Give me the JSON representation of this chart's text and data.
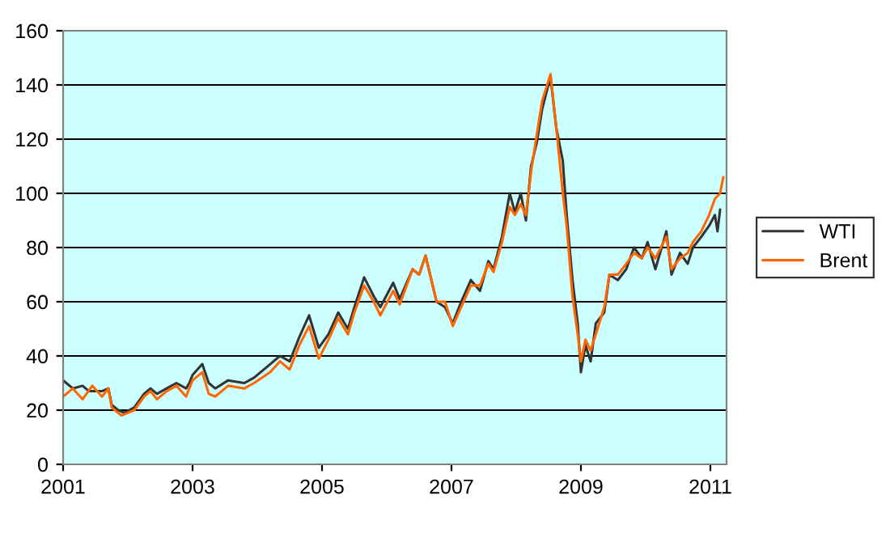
{
  "chart_data": {
    "type": "line",
    "xlim": [
      2001,
      2011.25
    ],
    "xticks": [
      2001,
      2003,
      2005,
      2007,
      2009,
      2011
    ],
    "ylim": [
      0,
      160
    ],
    "yticks": [
      0,
      20,
      40,
      60,
      80,
      100,
      120,
      140,
      160
    ],
    "grid": "y",
    "legend": "right",
    "series": [
      {
        "name": "WTI",
        "color": "#333333",
        "x": [
          2001.0,
          2001.15,
          2001.3,
          2001.4,
          2001.6,
          2001.7,
          2001.75,
          2001.85,
          2001.95,
          2002.1,
          2002.25,
          2002.35,
          2002.45,
          2002.6,
          2002.75,
          2002.9,
          2002.95,
          2003.0,
          2003.15,
          2003.25,
          2003.35,
          2003.55,
          2003.8,
          2003.95,
          2004.2,
          2004.35,
          2004.5,
          2004.65,
          2004.8,
          2004.95,
          2005.1,
          2005.25,
          2005.4,
          2005.5,
          2005.65,
          2005.8,
          2005.9,
          2006.1,
          2006.2,
          2006.4,
          2006.5,
          2006.6,
          2006.77,
          2006.9,
          2007.02,
          2007.15,
          2007.3,
          2007.44,
          2007.57,
          2007.65,
          2007.78,
          2007.9,
          2007.98,
          2008.07,
          2008.15,
          2008.23,
          2008.32,
          2008.4,
          2008.53,
          2008.62,
          2008.72,
          2008.78,
          2008.87,
          2008.95,
          2009.0,
          2009.07,
          2009.15,
          2009.23,
          2009.36,
          2009.44,
          2009.57,
          2009.7,
          2009.82,
          2009.94,
          2010.03,
          2010.15,
          2010.32,
          2010.4,
          2010.53,
          2010.65,
          2010.73,
          2010.86,
          2010.98,
          2011.07,
          2011.11,
          2011.15
        ],
        "values": [
          31,
          28,
          29,
          27,
          27,
          28,
          22,
          20,
          19,
          21,
          26,
          28,
          26,
          28,
          30,
          28,
          30,
          33,
          37,
          30,
          28,
          31,
          30,
          32,
          37,
          40,
          38,
          47,
          55,
          43,
          48,
          56,
          50,
          58,
          69,
          62,
          58,
          67,
          61,
          72,
          70,
          77,
          60,
          58,
          52,
          60,
          68,
          64,
          75,
          72,
          84,
          100,
          93,
          100,
          90,
          110,
          119,
          131,
          143,
          124,
          112,
          92,
          68,
          52,
          34,
          44,
          38,
          52,
          56,
          70,
          68,
          72,
          80,
          76,
          82,
          72,
          86,
          70,
          78,
          74,
          80,
          84,
          88,
          92,
          86,
          94
        ]
      },
      {
        "name": "Brent",
        "color": "#ff6600",
        "x": [
          2001.0,
          2001.15,
          2001.3,
          2001.45,
          2001.6,
          2001.7,
          2001.75,
          2001.9,
          2002.1,
          2002.25,
          2002.35,
          2002.45,
          2002.6,
          2002.75,
          2002.9,
          2003.0,
          2003.15,
          2003.25,
          2003.35,
          2003.55,
          2003.8,
          2003.95,
          2004.2,
          2004.35,
          2004.5,
          2004.65,
          2004.8,
          2004.95,
          2005.1,
          2005.25,
          2005.4,
          2005.5,
          2005.65,
          2005.8,
          2005.9,
          2006.1,
          2006.2,
          2006.4,
          2006.5,
          2006.6,
          2006.77,
          2006.9,
          2007.02,
          2007.15,
          2007.3,
          2007.44,
          2007.57,
          2007.65,
          2007.78,
          2007.9,
          2007.98,
          2008.07,
          2008.15,
          2008.23,
          2008.32,
          2008.4,
          2008.53,
          2008.62,
          2008.72,
          2008.78,
          2008.87,
          2008.95,
          2009.0,
          2009.07,
          2009.15,
          2009.23,
          2009.36,
          2009.44,
          2009.57,
          2009.7,
          2009.82,
          2009.94,
          2010.03,
          2010.15,
          2010.32,
          2010.4,
          2010.53,
          2010.65,
          2010.73,
          2010.86,
          2010.98,
          2011.07,
          2011.15,
          2011.2
        ],
        "values": [
          25,
          28,
          24,
          29,
          25,
          28,
          21,
          18,
          20,
          25,
          27,
          24,
          27,
          29,
          25,
          31,
          34,
          26,
          25,
          29,
          28,
          30,
          34,
          38,
          35,
          44,
          51,
          39,
          46,
          54,
          48,
          56,
          66,
          60,
          55,
          64,
          59,
          72,
          70,
          77,
          60,
          60,
          51,
          58,
          66,
          66,
          74,
          71,
          82,
          95,
          92,
          96,
          92,
          108,
          122,
          134,
          144,
          124,
          100,
          88,
          62,
          48,
          38,
          46,
          42,
          48,
          58,
          70,
          70,
          74,
          78,
          76,
          80,
          76,
          84,
          72,
          76,
          78,
          82,
          86,
          92,
          98,
          100,
          106
        ]
      }
    ]
  }
}
